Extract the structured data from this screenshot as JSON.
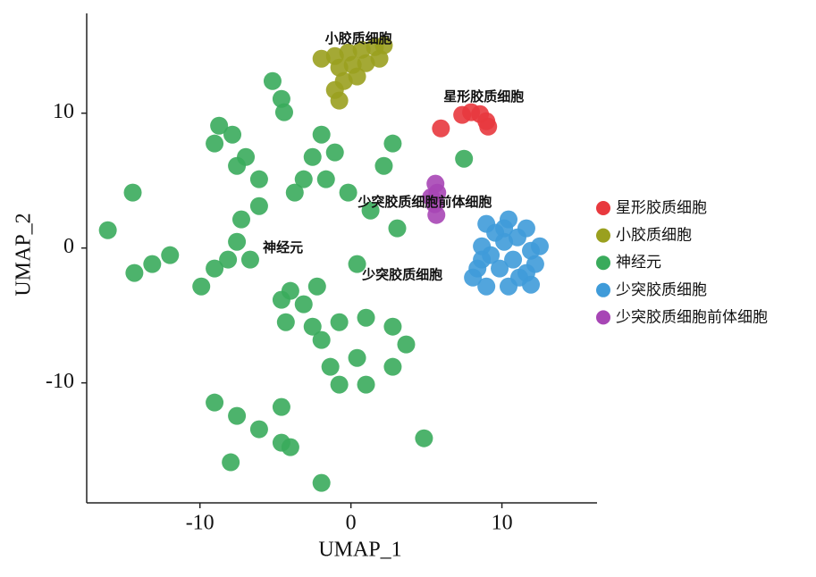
{
  "chart_data": {
    "type": "scatter",
    "xlabel": "UMAP_1",
    "ylabel": "UMAP_2",
    "xlim": [
      -17.5,
      16.3
    ],
    "ylim": [
      -18.9,
      17.4
    ],
    "xticks": [
      -10,
      0,
      10
    ],
    "yticks": [
      -10,
      0,
      10
    ],
    "legend": "right",
    "annotations": [
      {
        "text": "小胶质细胞",
        "x": 0.5,
        "y": 15.5
      },
      {
        "text": "星形胶质细胞",
        "x": 8.8,
        "y": 11.2
      },
      {
        "text": "少突胶质细胞前体细胞",
        "x": 4.9,
        "y": 3.4
      },
      {
        "text": "神经元",
        "x": -4.5,
        "y": 0.0
      },
      {
        "text": "少突胶质细胞",
        "x": 3.4,
        "y": -2.0
      }
    ],
    "series": [
      {
        "name": "星形胶质细胞",
        "color": "#e8393e",
        "x": [
          7.37,
          7.96,
          8.55,
          8.97,
          9.09,
          5.96
        ],
        "y": [
          9.87,
          10.07,
          9.93,
          9.4,
          9.0,
          8.87
        ]
      },
      {
        "name": "小胶质细胞",
        "color": "#9aa01f",
        "x": [
          -1.95,
          -1.06,
          -0.18,
          0.71,
          1.59,
          2.18,
          -0.77,
          0.12,
          1.0,
          1.89,
          -0.47,
          0.41,
          -1.06,
          -0.77
        ],
        "y": [
          14.04,
          14.24,
          14.5,
          14.7,
          14.9,
          15.03,
          13.38,
          13.58,
          13.71,
          14.04,
          12.38,
          12.72,
          11.72,
          10.93
        ]
      },
      {
        "name": "神经元",
        "color": "#3aab5c",
        "x": [
          -5.19,
          -4.6,
          -4.42,
          -8.73,
          -9.03,
          -7.85,
          -6.96,
          -6.08,
          -7.55,
          -1.95,
          -2.54,
          -1.06,
          -3.13,
          -1.65,
          -0.18,
          1.3,
          -3.72,
          2.77,
          2.18,
          7.49,
          -14.45,
          -16.1,
          -14.34,
          -13.16,
          -11.98,
          -7.26,
          -7.55,
          -6.67,
          -9.03,
          -9.91,
          -8.14,
          -6.08,
          3.07,
          -4.31,
          -2.54,
          -0.77,
          1.0,
          2.77,
          3.66,
          2.77,
          1.0,
          -0.77,
          -1.36,
          0.41,
          -1.95,
          -4.01,
          -3.13,
          -4.6,
          -2.24,
          0.41,
          -9.03,
          -7.55,
          -6.08,
          -4.6,
          -4.01,
          -7.96,
          4.84,
          -1.95,
          -4.6
        ],
        "y": [
          12.38,
          11.06,
          10.07,
          9.07,
          7.75,
          8.41,
          6.75,
          5.1,
          6.09,
          8.41,
          6.75,
          7.09,
          5.1,
          5.1,
          4.11,
          2.78,
          4.11,
          7.75,
          6.09,
          6.62,
          4.11,
          1.32,
          -1.85,
          -1.19,
          -0.53,
          2.12,
          0.46,
          -0.86,
          -1.52,
          -2.85,
          -0.86,
          3.11,
          1.46,
          -5.5,
          -5.83,
          -5.5,
          -5.17,
          -5.83,
          -7.15,
          -8.81,
          -10.13,
          -10.13,
          -8.81,
          -8.15,
          -6.82,
          -3.18,
          -4.17,
          -3.84,
          -2.85,
          -1.19,
          -11.46,
          -12.45,
          -13.44,
          -14.44,
          -14.77,
          -15.89,
          -14.11,
          -17.42,
          -11.79
        ]
      },
      {
        "name": "少突胶质细胞",
        "color": "#3f9bd9",
        "x": [
          8.97,
          10.44,
          11.62,
          8.67,
          10.15,
          11.92,
          8.38,
          9.85,
          11.62,
          8.97,
          10.44,
          11.92,
          9.56,
          11.03,
          8.08,
          12.21,
          10.74,
          9.26,
          11.15,
          10.15,
          8.67,
          12.51
        ],
        "y": [
          1.79,
          2.12,
          1.46,
          0.13,
          0.46,
          -0.2,
          -1.52,
          -1.52,
          -1.85,
          -2.85,
          -2.85,
          -2.72,
          1.13,
          0.79,
          -2.19,
          -1.19,
          -0.86,
          -0.53,
          -2.19,
          1.46,
          -0.86,
          0.13
        ]
      },
      {
        "name": "少突胶质细胞前体细胞",
        "color": "#a746b5",
        "x": [
          5.6,
          5.72,
          5.55,
          5.66,
          5.31
        ],
        "y": [
          4.77,
          4.1,
          3.25,
          2.45,
          3.77
        ]
      }
    ]
  }
}
